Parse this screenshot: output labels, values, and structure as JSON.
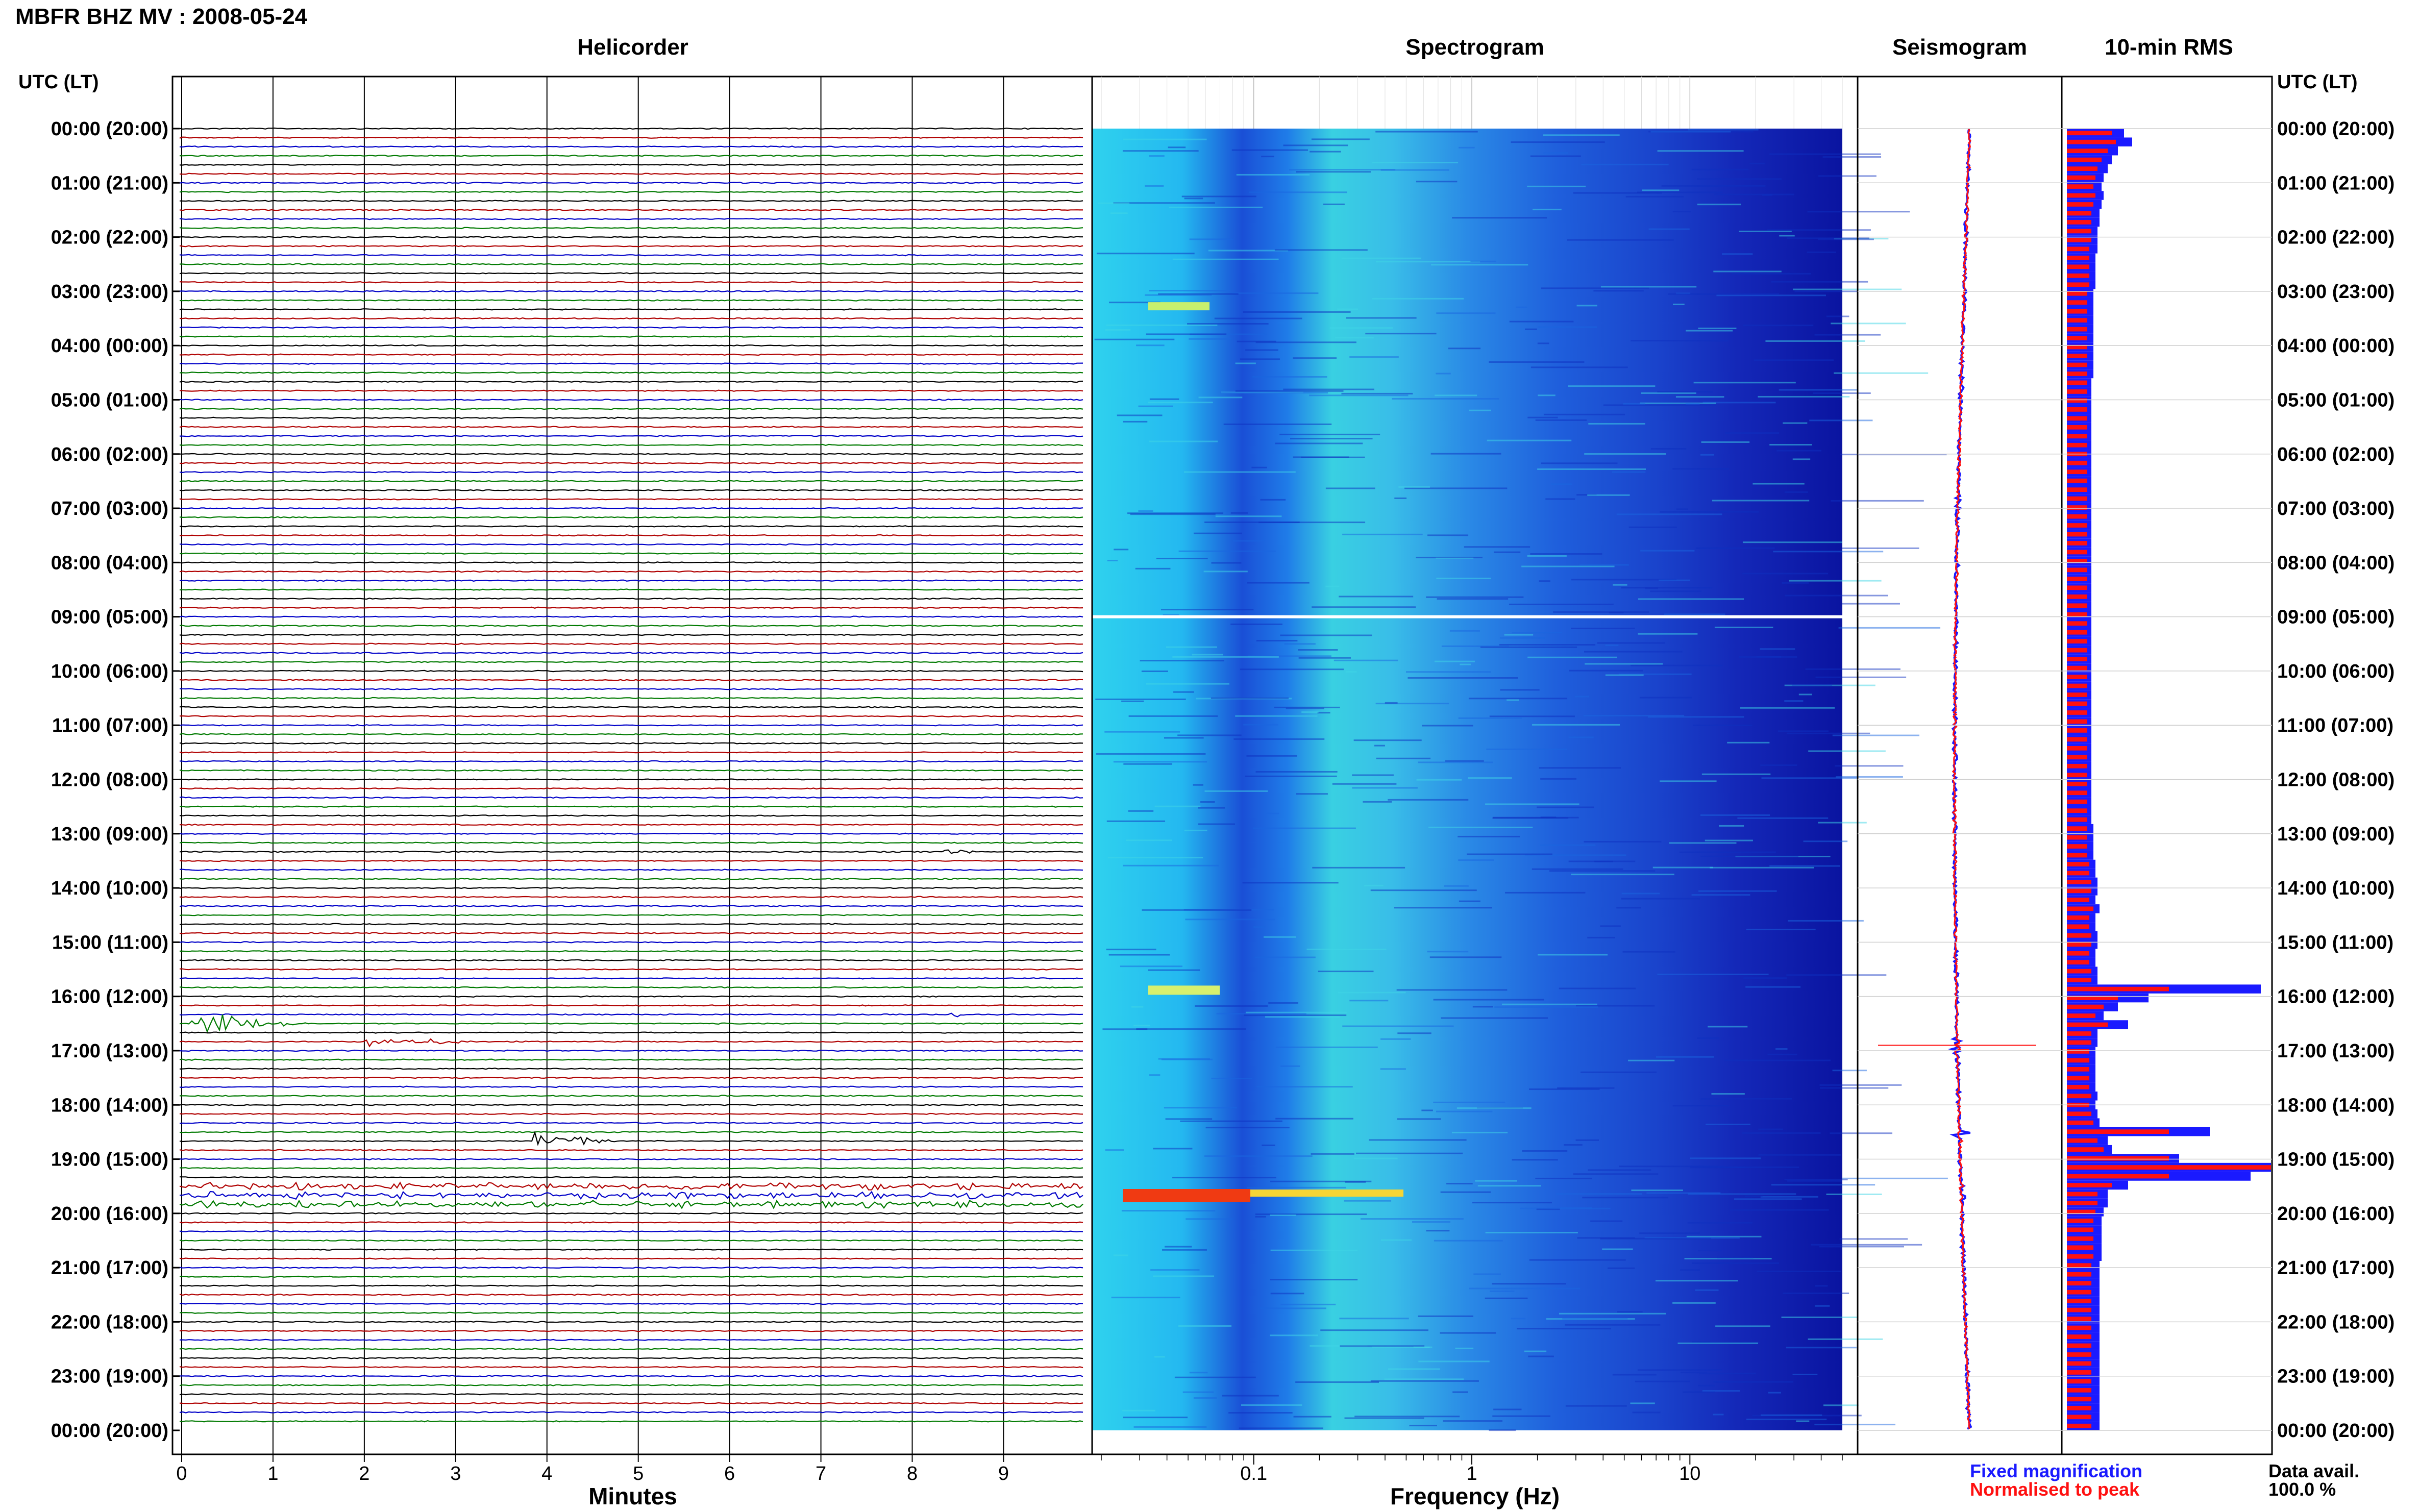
{
  "header": {
    "title": "MBFR BHZ MV : 2008-05-24"
  },
  "panels": {
    "helicorder": "Helicorder",
    "spectrogram": "Spectrogram",
    "seismogram": "Seismogram",
    "rms": "10-min RMS"
  },
  "time_axis_label": "UTC (LT)",
  "time_labels": [
    "00:00 (20:00)",
    "01:00 (21:00)",
    "02:00 (22:00)",
    "03:00 (23:00)",
    "04:00 (00:00)",
    "05:00 (01:00)",
    "06:00 (02:00)",
    "07:00 (03:00)",
    "08:00 (04:00)",
    "09:00 (05:00)",
    "10:00 (06:00)",
    "11:00 (07:00)",
    "12:00 (08:00)",
    "13:00 (09:00)",
    "14:00 (10:00)",
    "15:00 (11:00)",
    "16:00 (12:00)",
    "17:00 (13:00)",
    "18:00 (14:00)",
    "19:00 (15:00)",
    "20:00 (16:00)",
    "21:00 (17:00)",
    "22:00 (18:00)",
    "23:00 (19:00)",
    "00:00 (20:00)"
  ],
  "helicorder_axis": {
    "label": "Minutes",
    "ticks": [
      "0",
      "1",
      "2",
      "3",
      "4",
      "5",
      "6",
      "7",
      "8",
      "9"
    ]
  },
  "spectrogram_axis": {
    "label": "Frequency (Hz)",
    "ticks": [
      "0.1",
      "1",
      "10"
    ],
    "scale": "log"
  },
  "legend": {
    "fixed": "Fixed magnification",
    "normalised": "Normalised to peak"
  },
  "availability": {
    "label": "Data avail.",
    "value": "100.0 %"
  },
  "colors": {
    "trace_black": "#000000",
    "trace_red": "#b00000",
    "trace_blue": "#0000c8",
    "trace_green": "#007a00",
    "rms_fixed": "#1a1aff",
    "rms_norm": "#ff1010"
  },
  "chart_data": [
    {
      "type": "line",
      "title": "Helicorder",
      "xlabel": "Minutes",
      "xlim": [
        0,
        10
      ],
      "ylim_hours": [
        0,
        24
      ],
      "trace_interval_min": 10,
      "events": [
        {
          "hour": 16.45,
          "minute": 0.1,
          "amplitude": 3.2,
          "duration_min": 1.3,
          "color": "green"
        },
        {
          "hour": 16.3,
          "minute": 8.4,
          "amplitude": 1.0,
          "duration_min": 0.3,
          "color": "blue"
        },
        {
          "hour": 16.8,
          "minute": 2.0,
          "amplitude": 1.2,
          "duration_min": 1.4,
          "color": "blue"
        },
        {
          "hour": 18.6,
          "minute": 3.85,
          "amplitude": 3.0,
          "duration_min": 0.9,
          "color": "black"
        },
        {
          "hour": 13.3,
          "minute": 8.3,
          "amplitude": 0.8,
          "duration_min": 0.6,
          "color": "black"
        }
      ]
    },
    {
      "type": "heatmap",
      "title": "Spectrogram",
      "xlabel": "Frequency (Hz)",
      "xscale": "log",
      "xlim": [
        0.02,
        50
      ],
      "ylim_hours": [
        0,
        24
      ]
    },
    {
      "type": "line",
      "title": "Seismogram",
      "ylim_hours": [
        0,
        24
      ]
    },
    {
      "type": "bar",
      "title": "10-min RMS",
      "orientation": "horizontal",
      "ylim_hours": [
        0,
        24
      ],
      "series": [
        {
          "name": "Fixed magnification",
          "values": [
            0.28,
            0.32,
            0.25,
            0.22,
            0.2,
            0.18,
            0.17,
            0.18,
            0.17,
            0.16,
            0.16,
            0.15,
            0.15,
            0.15,
            0.14,
            0.14,
            0.14,
            0.14,
            0.13,
            0.13,
            0.13,
            0.13,
            0.13,
            0.13,
            0.13,
            0.13,
            0.13,
            0.13,
            0.12,
            0.12,
            0.12,
            0.12,
            0.12,
            0.12,
            0.12,
            0.12,
            0.12,
            0.12,
            0.12,
            0.12,
            0.12,
            0.12,
            0.12,
            0.12,
            0.12,
            0.12,
            0.12,
            0.12,
            0.12,
            0.12,
            0.12,
            0.12,
            0.12,
            0.12,
            0.12,
            0.12,
            0.12,
            0.12,
            0.12,
            0.12,
            0.12,
            0.12,
            0.12,
            0.12,
            0.12,
            0.12,
            0.12,
            0.12,
            0.12,
            0.12,
            0.12,
            0.12,
            0.12,
            0.12,
            0.12,
            0.12,
            0.12,
            0.12,
            0.13,
            0.13,
            0.13,
            0.13,
            0.14,
            0.14,
            0.15,
            0.15,
            0.14,
            0.16,
            0.14,
            0.14,
            0.15,
            0.15,
            0.14,
            0.14,
            0.15,
            0.15,
            0.95,
            0.4,
            0.25,
            0.18,
            0.3,
            0.15,
            0.15,
            0.14,
            0.14,
            0.14,
            0.14,
            0.14,
            0.15,
            0.14,
            0.15,
            0.16,
            0.7,
            0.2,
            0.22,
            0.55,
            1.3,
            0.9,
            0.3,
            0.2,
            0.2,
            0.18,
            0.17,
            0.17,
            0.17,
            0.17,
            0.17,
            0.16,
            0.16,
            0.16,
            0.16,
            0.16,
            0.16,
            0.16,
            0.16,
            0.16,
            0.16,
            0.16,
            0.16,
            0.16,
            0.16,
            0.16,
            0.16,
            0.16,
            0.16,
            0.16
          ]
        },
        {
          "name": "Normalised to peak",
          "values": [
            0.22,
            0.24,
            0.2,
            0.17,
            0.15,
            0.14,
            0.13,
            0.14,
            0.13,
            0.12,
            0.12,
            0.12,
            0.12,
            0.11,
            0.11,
            0.11,
            0.11,
            0.11,
            0.1,
            0.1,
            0.1,
            0.1,
            0.1,
            0.1,
            0.1,
            0.1,
            0.1,
            0.1,
            0.1,
            0.1,
            0.1,
            0.1,
            0.1,
            0.1,
            0.1,
            0.1,
            0.1,
            0.1,
            0.1,
            0.1,
            0.1,
            0.1,
            0.1,
            0.1,
            0.1,
            0.1,
            0.1,
            0.1,
            0.1,
            0.1,
            0.1,
            0.1,
            0.1,
            0.1,
            0.1,
            0.1,
            0.1,
            0.1,
            0.1,
            0.1,
            0.1,
            0.1,
            0.1,
            0.1,
            0.1,
            0.1,
            0.1,
            0.1,
            0.1,
            0.1,
            0.1,
            0.1,
            0.1,
            0.1,
            0.1,
            0.1,
            0.1,
            0.1,
            0.1,
            0.1,
            0.1,
            0.1,
            0.11,
            0.11,
            0.12,
            0.12,
            0.11,
            0.13,
            0.11,
            0.11,
            0.12,
            0.12,
            0.11,
            0.11,
            0.12,
            0.12,
            0.5,
            0.25,
            0.18,
            0.14,
            0.2,
            0.12,
            0.12,
            0.11,
            0.11,
            0.11,
            0.11,
            0.11,
            0.12,
            0.11,
            0.12,
            0.13,
            0.5,
            0.15,
            0.18,
            0.5,
            1.0,
            0.5,
            0.22,
            0.15,
            0.15,
            0.14,
            0.13,
            0.13,
            0.13,
            0.13,
            0.13,
            0.12,
            0.12,
            0.12,
            0.12,
            0.12,
            0.12,
            0.12,
            0.12,
            0.12,
            0.12,
            0.12,
            0.12,
            0.12,
            0.12,
            0.12,
            0.12,
            0.12,
            0.12,
            0.12
          ]
        }
      ]
    }
  ]
}
